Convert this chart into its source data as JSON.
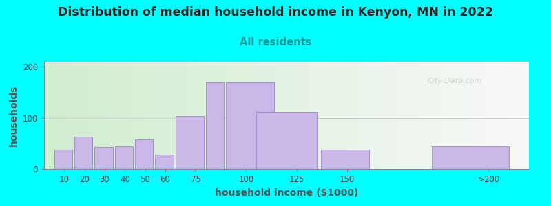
{
  "title": "Distribution of median household income in Kenyon, MN in 2022",
  "subtitle": "All residents",
  "xlabel": "household income ($1000)",
  "ylabel": "households",
  "bar_color": "#c9b8e8",
  "bar_edgecolor": "#a890cc",
  "background_outer": "#00ffff",
  "ylim": [
    0,
    210
  ],
  "yticks": [
    0,
    100,
    200
  ],
  "title_fontsize": 12.5,
  "subtitle_fontsize": 10.5,
  "axis_label_fontsize": 10,
  "watermark": "City-Data.com",
  "bar_lefts": [
    5,
    15,
    25,
    35,
    45,
    55,
    65,
    80,
    90,
    105,
    137,
    162,
    192
  ],
  "bar_widths": [
    9,
    9,
    9,
    9,
    9,
    9,
    14,
    9,
    24,
    30,
    24,
    28,
    38
  ],
  "values": [
    38,
    63,
    43,
    45,
    58,
    28,
    103,
    170,
    170,
    112,
    38,
    0,
    45
  ],
  "xtick_positions": [
    10,
    20,
    30,
    40,
    50,
    60,
    75,
    100,
    125,
    150,
    220
  ],
  "xtick_labels": [
    "10",
    "20",
    "30",
    "40",
    "50",
    "60",
    "75",
    "100",
    "125",
    "150",
    ">200"
  ],
  "xlim": [
    0,
    240
  ]
}
